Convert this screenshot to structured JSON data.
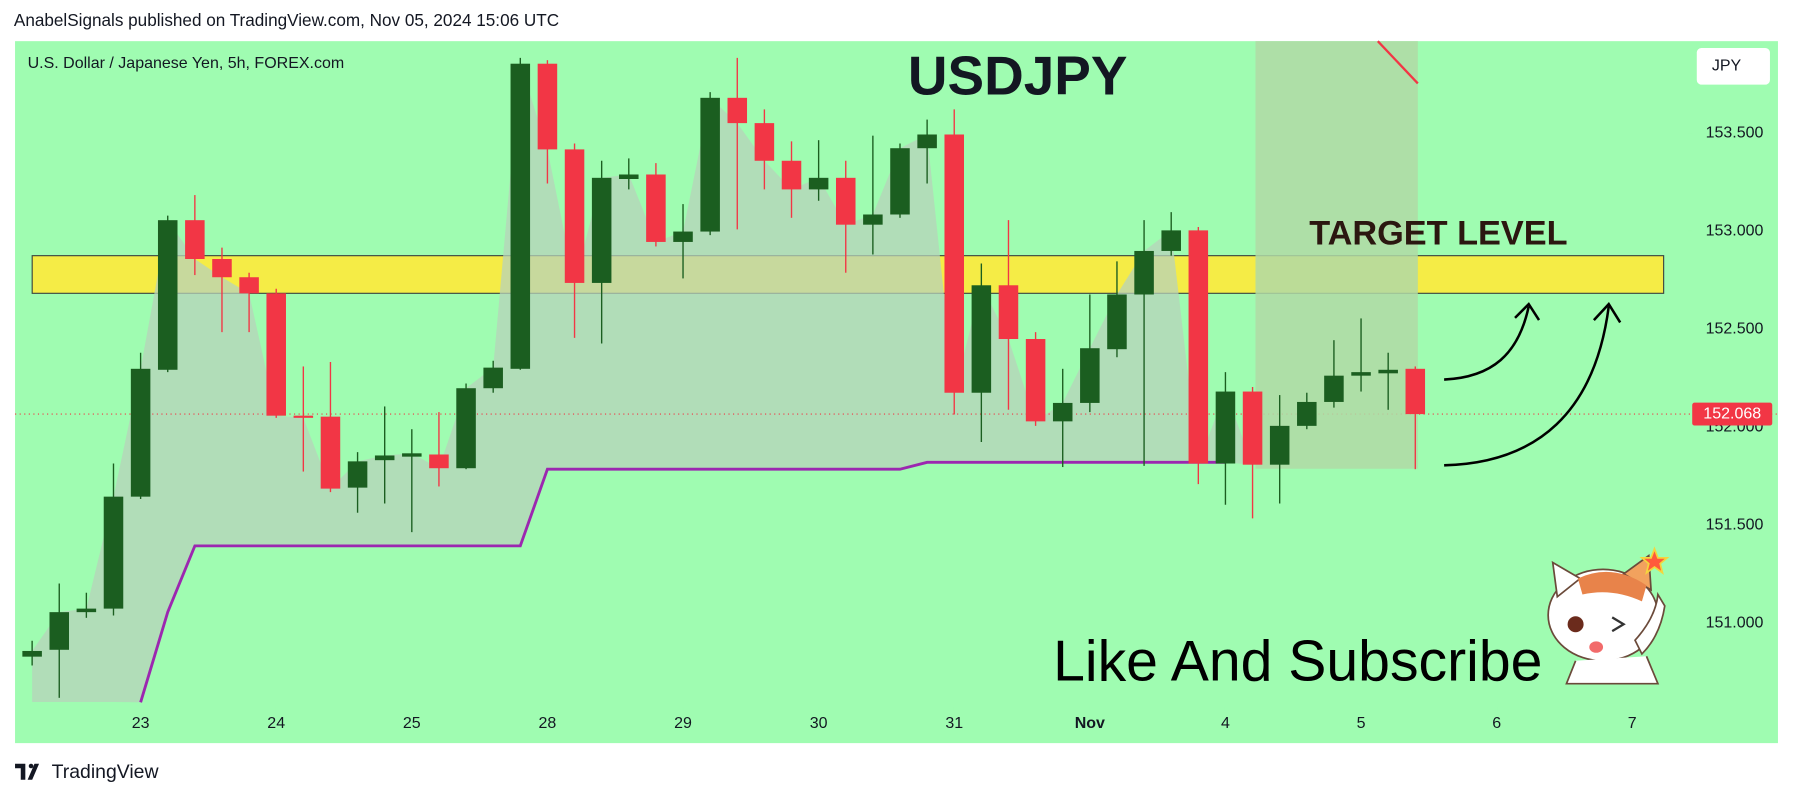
{
  "header": "AnabelSignals published on TradingView.com, Nov 05, 2024 15:06 UTC",
  "footer": "TradingView",
  "currency": "JPY",
  "chart_data": {
    "type": "candlestick",
    "title": "USDJPY",
    "subtitle": "U.S. Dollar / Japanese Yen, 5h, FOREX.com",
    "annotations": [
      "TARGET LEVEL",
      "Like And Subscribe"
    ],
    "up_color": "#1b5e20",
    "down_color": "#f23645",
    "open": [
      150.831,
      150.866,
      151.058,
      151.076,
      151.647,
      152.294,
      153.057,
      152.859,
      152.766,
      152.684,
      152.06,
      152.055,
      151.693,
      151.833,
      151.851,
      151.862,
      151.792,
      152.2,
      152.299,
      153.855,
      153.418,
      152.737,
      153.267,
      153.29,
      152.946,
      152.999,
      153.681,
      153.552,
      153.36,
      153.214,
      153.273,
      153.034,
      153.086,
      153.424,
      153.494,
      152.177,
      152.725,
      152.451,
      152.031,
      152.125,
      152.399,
      152.678,
      152.9,
      153.005,
      151.816,
      152.183,
      151.81,
      152.008,
      152.13,
      152.264,
      152.276,
      152.299
    ],
    "high": [
      150.912,
      151.204,
      151.157,
      151.816,
      152.381,
      153.08,
      153.185,
      152.917,
      152.789,
      152.707,
      152.311,
      152.334,
      151.874,
      152.107,
      151.991,
      152.078,
      152.224,
      152.34,
      153.885,
      153.873,
      153.448,
      153.36,
      153.372,
      153.348,
      153.139,
      153.71,
      153.885,
      153.622,
      153.459,
      153.465,
      153.36,
      153.488,
      153.448,
      153.57,
      153.622,
      152.836,
      153.057,
      152.486,
      152.299,
      152.678,
      152.847,
      153.057,
      153.098,
      153.022,
      152.282,
      152.206,
      152.165,
      152.177,
      152.445,
      152.556,
      152.381,
      152.311
    ],
    "low": [
      150.786,
      150.621,
      151.029,
      151.041,
      151.635,
      152.282,
      152.777,
      152.486,
      152.486,
      152.049,
      151.775,
      151.67,
      151.565,
      151.612,
      151.466,
      151.699,
      151.787,
      152.177,
      152.294,
      153.244,
      152.457,
      152.428,
      153.214,
      152.923,
      152.76,
      152.981,
      153.01,
      153.214,
      153.069,
      153.156,
      152.789,
      152.882,
      153.069,
      153.244,
      152.066,
      151.926,
      152.09,
      152.008,
      151.798,
      152.078,
      152.358,
      151.804,
      152.876,
      151.711,
      151.606,
      151.536,
      151.612,
      151.991,
      152.101,
      152.183,
      152.09,
      151.787
    ],
    "close": [
      150.86,
      151.058,
      151.076,
      151.647,
      152.299,
      153.057,
      152.859,
      152.766,
      152.684,
      152.06,
      152.049,
      151.688,
      151.827,
      151.857,
      151.868,
      151.792,
      152.2,
      152.305,
      153.855,
      153.418,
      152.737,
      153.273,
      153.29,
      152.946,
      152.999,
      153.681,
      153.552,
      153.36,
      153.214,
      153.273,
      153.034,
      153.086,
      153.424,
      153.494,
      152.177,
      152.725,
      152.451,
      152.031,
      152.125,
      152.404,
      152.678,
      152.9,
      153.005,
      151.816,
      152.183,
      151.81,
      152.008,
      152.13,
      152.264,
      152.282,
      152.294,
      152.068
    ],
    "stop_line": {
      "color": "#9c27b0",
      "values": [
        null,
        null,
        null,
        null,
        150.598,
        151.058,
        151.396,
        151.396,
        151.396,
        151.396,
        151.396,
        151.396,
        151.396,
        151.396,
        151.396,
        151.396,
        151.396,
        151.396,
        151.396,
        151.787,
        151.787,
        151.787,
        151.787,
        151.787,
        151.787,
        151.787,
        151.787,
        151.787,
        151.787,
        151.787,
        151.787,
        151.787,
        151.787,
        151.822,
        151.822,
        151.822,
        151.822,
        151.822,
        151.822,
        151.822,
        151.822,
        151.822,
        151.822,
        151.822,
        151.822,
        null,
        null,
        null,
        null,
        null,
        null,
        null
      ]
    },
    "target_zone": [
      152.684,
      152.876
    ],
    "last_price": 152.068,
    "ylim": [
      150.39,
      153.97
    ],
    "yticks": [
      {
        "value": 151,
        "label": "151.000"
      },
      {
        "value": 151.5,
        "label": "151.500"
      },
      {
        "value": 152,
        "label": "152.000"
      },
      {
        "value": 152.5,
        "label": "152.500"
      },
      {
        "value": 153,
        "label": "153.000"
      },
      {
        "value": 153.5,
        "label": "153.500"
      }
    ],
    "xlim": [
      -0.63,
      61.0
    ],
    "xticks": [
      {
        "value": 4,
        "label": "23"
      },
      {
        "value": 9,
        "label": "24"
      },
      {
        "value": 14,
        "label": "25"
      },
      {
        "value": 19,
        "label": "28"
      },
      {
        "value": 24,
        "label": "29"
      },
      {
        "value": 29,
        "label": "30"
      },
      {
        "value": 34,
        "label": "31"
      },
      {
        "value": 39,
        "label": "Nov"
      },
      {
        "value": 44,
        "label": "4"
      },
      {
        "value": 49,
        "label": "5"
      },
      {
        "value": 54,
        "label": "6"
      },
      {
        "value": 59,
        "label": "7"
      }
    ]
  }
}
